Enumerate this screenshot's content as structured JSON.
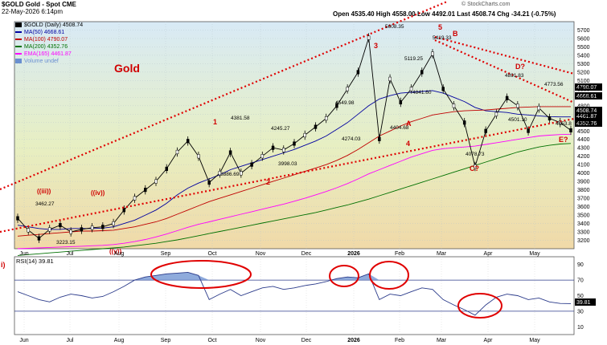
{
  "header": {
    "symbol": "$GOLD Gold - Spot CME",
    "date": "22-May-2026 6:14pm",
    "ohlc": "Open 4535.40  High 4558.00  Low 4492.01  Last 4508.74  Chg -34.21 (-0.75%)",
    "chg_down_icon": "triangle-down-icon",
    "copyright": "© StockCharts.com"
  },
  "legend": [
    {
      "label": "$GOLD (Daily) 4508.74",
      "color": "#000000",
      "marker": "candle"
    },
    {
      "label": "MA(50) 4668.61",
      "color": "#0000a0",
      "marker": "line"
    },
    {
      "label": "MA(100) 4790.07",
      "color": "#c00000",
      "marker": "line"
    },
    {
      "label": "MA(200) 4352.76",
      "color": "#007000",
      "marker": "line"
    },
    {
      "label": "EMA(165) 4461.87",
      "color": "#ff00ff",
      "marker": "line"
    },
    {
      "label": "Volume undef",
      "color": "#6a8fd0",
      "marker": "box"
    }
  ],
  "colors": {
    "bg_top": "#d8eaf6",
    "bg_mid": "#e7efc2",
    "bg_bottom": "#f0d9a8",
    "trend": "#e00000",
    "labels": "#d00000",
    "circle": "#e00000",
    "price_tag": "#000000"
  },
  "chart_data": [
    {
      "type": "line",
      "title": "Gold",
      "ylim": [
        3100,
        5800
      ],
      "yticks": [
        3200,
        3300,
        3400,
        3500,
        3600,
        3700,
        3800,
        3900,
        4000,
        4100,
        4200,
        4300,
        4400,
        4500,
        4600,
        4700,
        4800,
        4900,
        5000,
        5100,
        5200,
        5300,
        5400,
        5500,
        5600,
        5700
      ],
      "x_labels": [
        "Jun",
        "Jul",
        "Aug",
        "Sep",
        "Oct",
        "Nov",
        "Dec",
        "2026",
        "Feb",
        "Mar",
        "Apr",
        "May"
      ],
      "series": [
        {
          "name": "$GOLD (Daily)",
          "values": [
            3462,
            3320,
            3223,
            3330,
            3380,
            3300,
            3330,
            3350,
            3360,
            3400,
            3560,
            3700,
            3800,
            3900,
            4050,
            4250,
            4381,
            4200,
            3886,
            4000,
            4245,
            3998,
            4100,
            4200,
            4300,
            4274,
            4350,
            4450,
            4549,
            4650,
            4800,
            5000,
            5200,
            5608,
            4404,
            5119,
            4841,
            5000,
            5200,
            5419,
            5000,
            4800,
            4600,
            4078,
            4500,
            4700,
            4891,
            4800,
            4501,
            4773,
            4650,
            4600,
            4508
          ]
        },
        {
          "name": "MA(50)",
          "values": [
            3380,
            3360,
            3340,
            3330,
            3330,
            3340,
            3340,
            3340,
            3345,
            3360,
            3400,
            3440,
            3500,
            3560,
            3640,
            3740,
            3820,
            3880,
            3930,
            3980,
            4040,
            4080,
            4120,
            4160,
            4200,
            4240,
            4280,
            4330,
            4380,
            4440,
            4520,
            4600,
            4700,
            4800,
            4880,
            4920,
            4950,
            4960,
            4970,
            4980,
            4950,
            4900,
            4850,
            4780,
            4740,
            4730,
            4720,
            4700,
            4690,
            4680,
            4670,
            4668,
            4668
          ]
        },
        {
          "name": "MA(100)",
          "values": [
            3250,
            3260,
            3270,
            3280,
            3290,
            3300,
            3310,
            3310,
            3315,
            3320,
            3340,
            3360,
            3390,
            3420,
            3460,
            3510,
            3560,
            3610,
            3660,
            3700,
            3740,
            3780,
            3820,
            3860,
            3900,
            3940,
            3980,
            4020,
            4060,
            4100,
            4150,
            4210,
            4280,
            4360,
            4440,
            4500,
            4560,
            4610,
            4650,
            4690,
            4710,
            4730,
            4740,
            4745,
            4750,
            4760,
            4770,
            4780,
            4785,
            4790,
            4790,
            4790,
            4790
          ]
        },
        {
          "name": "MA(200)",
          "values": [
            3020,
            3030,
            3040,
            3050,
            3060,
            3070,
            3080,
            3090,
            3100,
            3110,
            3120,
            3135,
            3150,
            3165,
            3185,
            3205,
            3230,
            3255,
            3280,
            3305,
            3330,
            3355,
            3380,
            3405,
            3430,
            3455,
            3480,
            3505,
            3530,
            3560,
            3590,
            3620,
            3655,
            3690,
            3730,
            3770,
            3810,
            3850,
            3890,
            3930,
            3970,
            4010,
            4050,
            4090,
            4130,
            4170,
            4210,
            4250,
            4280,
            4310,
            4330,
            4345,
            4352
          ]
        },
        {
          "name": "EMA(165)",
          "values": [
            3100,
            3105,
            3110,
            3115,
            3120,
            3125,
            3130,
            3135,
            3140,
            3150,
            3165,
            3185,
            3210,
            3240,
            3275,
            3315,
            3355,
            3390,
            3420,
            3450,
            3480,
            3510,
            3540,
            3570,
            3600,
            3630,
            3665,
            3700,
            3740,
            3780,
            3825,
            3875,
            3930,
            3990,
            4040,
            4090,
            4140,
            4190,
            4230,
            4270,
            4290,
            4300,
            4310,
            4320,
            4340,
            4360,
            4380,
            4400,
            4420,
            4440,
            4450,
            4458,
            4461
          ]
        }
      ],
      "annotations": [
        "Gold",
        "((iii))",
        "((iv))",
        "((v))",
        "1",
        "2",
        "3",
        "4",
        "5",
        "A",
        "B",
        "C?",
        "D?",
        "E?",
        "5608.35",
        "5419.33",
        "5119.25",
        "4841.60",
        "4549.98",
        "4404.68",
        "4381.58",
        "4274.03",
        "4245.27",
        "3998.03",
        "3886.69",
        "4891.83",
        "4773.56",
        "4501.10",
        "4453.8",
        "4078.73",
        "3462.27",
        "3223.15"
      ],
      "price_tags": [
        "4790.07",
        "4668.61",
        "4508.74",
        "4461.87",
        "4352.76"
      ]
    },
    {
      "type": "line",
      "title": "RSI(14) 39.81",
      "ylim": [
        0,
        100
      ],
      "yticks": [
        10,
        30,
        50,
        70,
        90
      ],
      "reference_lines": [
        30,
        70
      ],
      "x_labels": [
        "Jun",
        "Jul",
        "Aug",
        "Sep",
        "Oct",
        "Nov",
        "Dec",
        "2026",
        "Feb",
        "Mar",
        "Apr",
        "May"
      ],
      "series": [
        {
          "name": "RSI(14)",
          "values": [
            55,
            50,
            45,
            42,
            48,
            52,
            50,
            47,
            49,
            55,
            62,
            70,
            74,
            76,
            78,
            79,
            80,
            76,
            45,
            52,
            58,
            50,
            55,
            60,
            62,
            58,
            60,
            63,
            65,
            68,
            72,
            74,
            73,
            78,
            45,
            52,
            50,
            55,
            60,
            58,
            45,
            38,
            32,
            25,
            38,
            48,
            52,
            50,
            45,
            47,
            42,
            40,
            39.81
          ]
        }
      ],
      "price_tag": "39.81",
      "left_label": "i)"
    }
  ]
}
